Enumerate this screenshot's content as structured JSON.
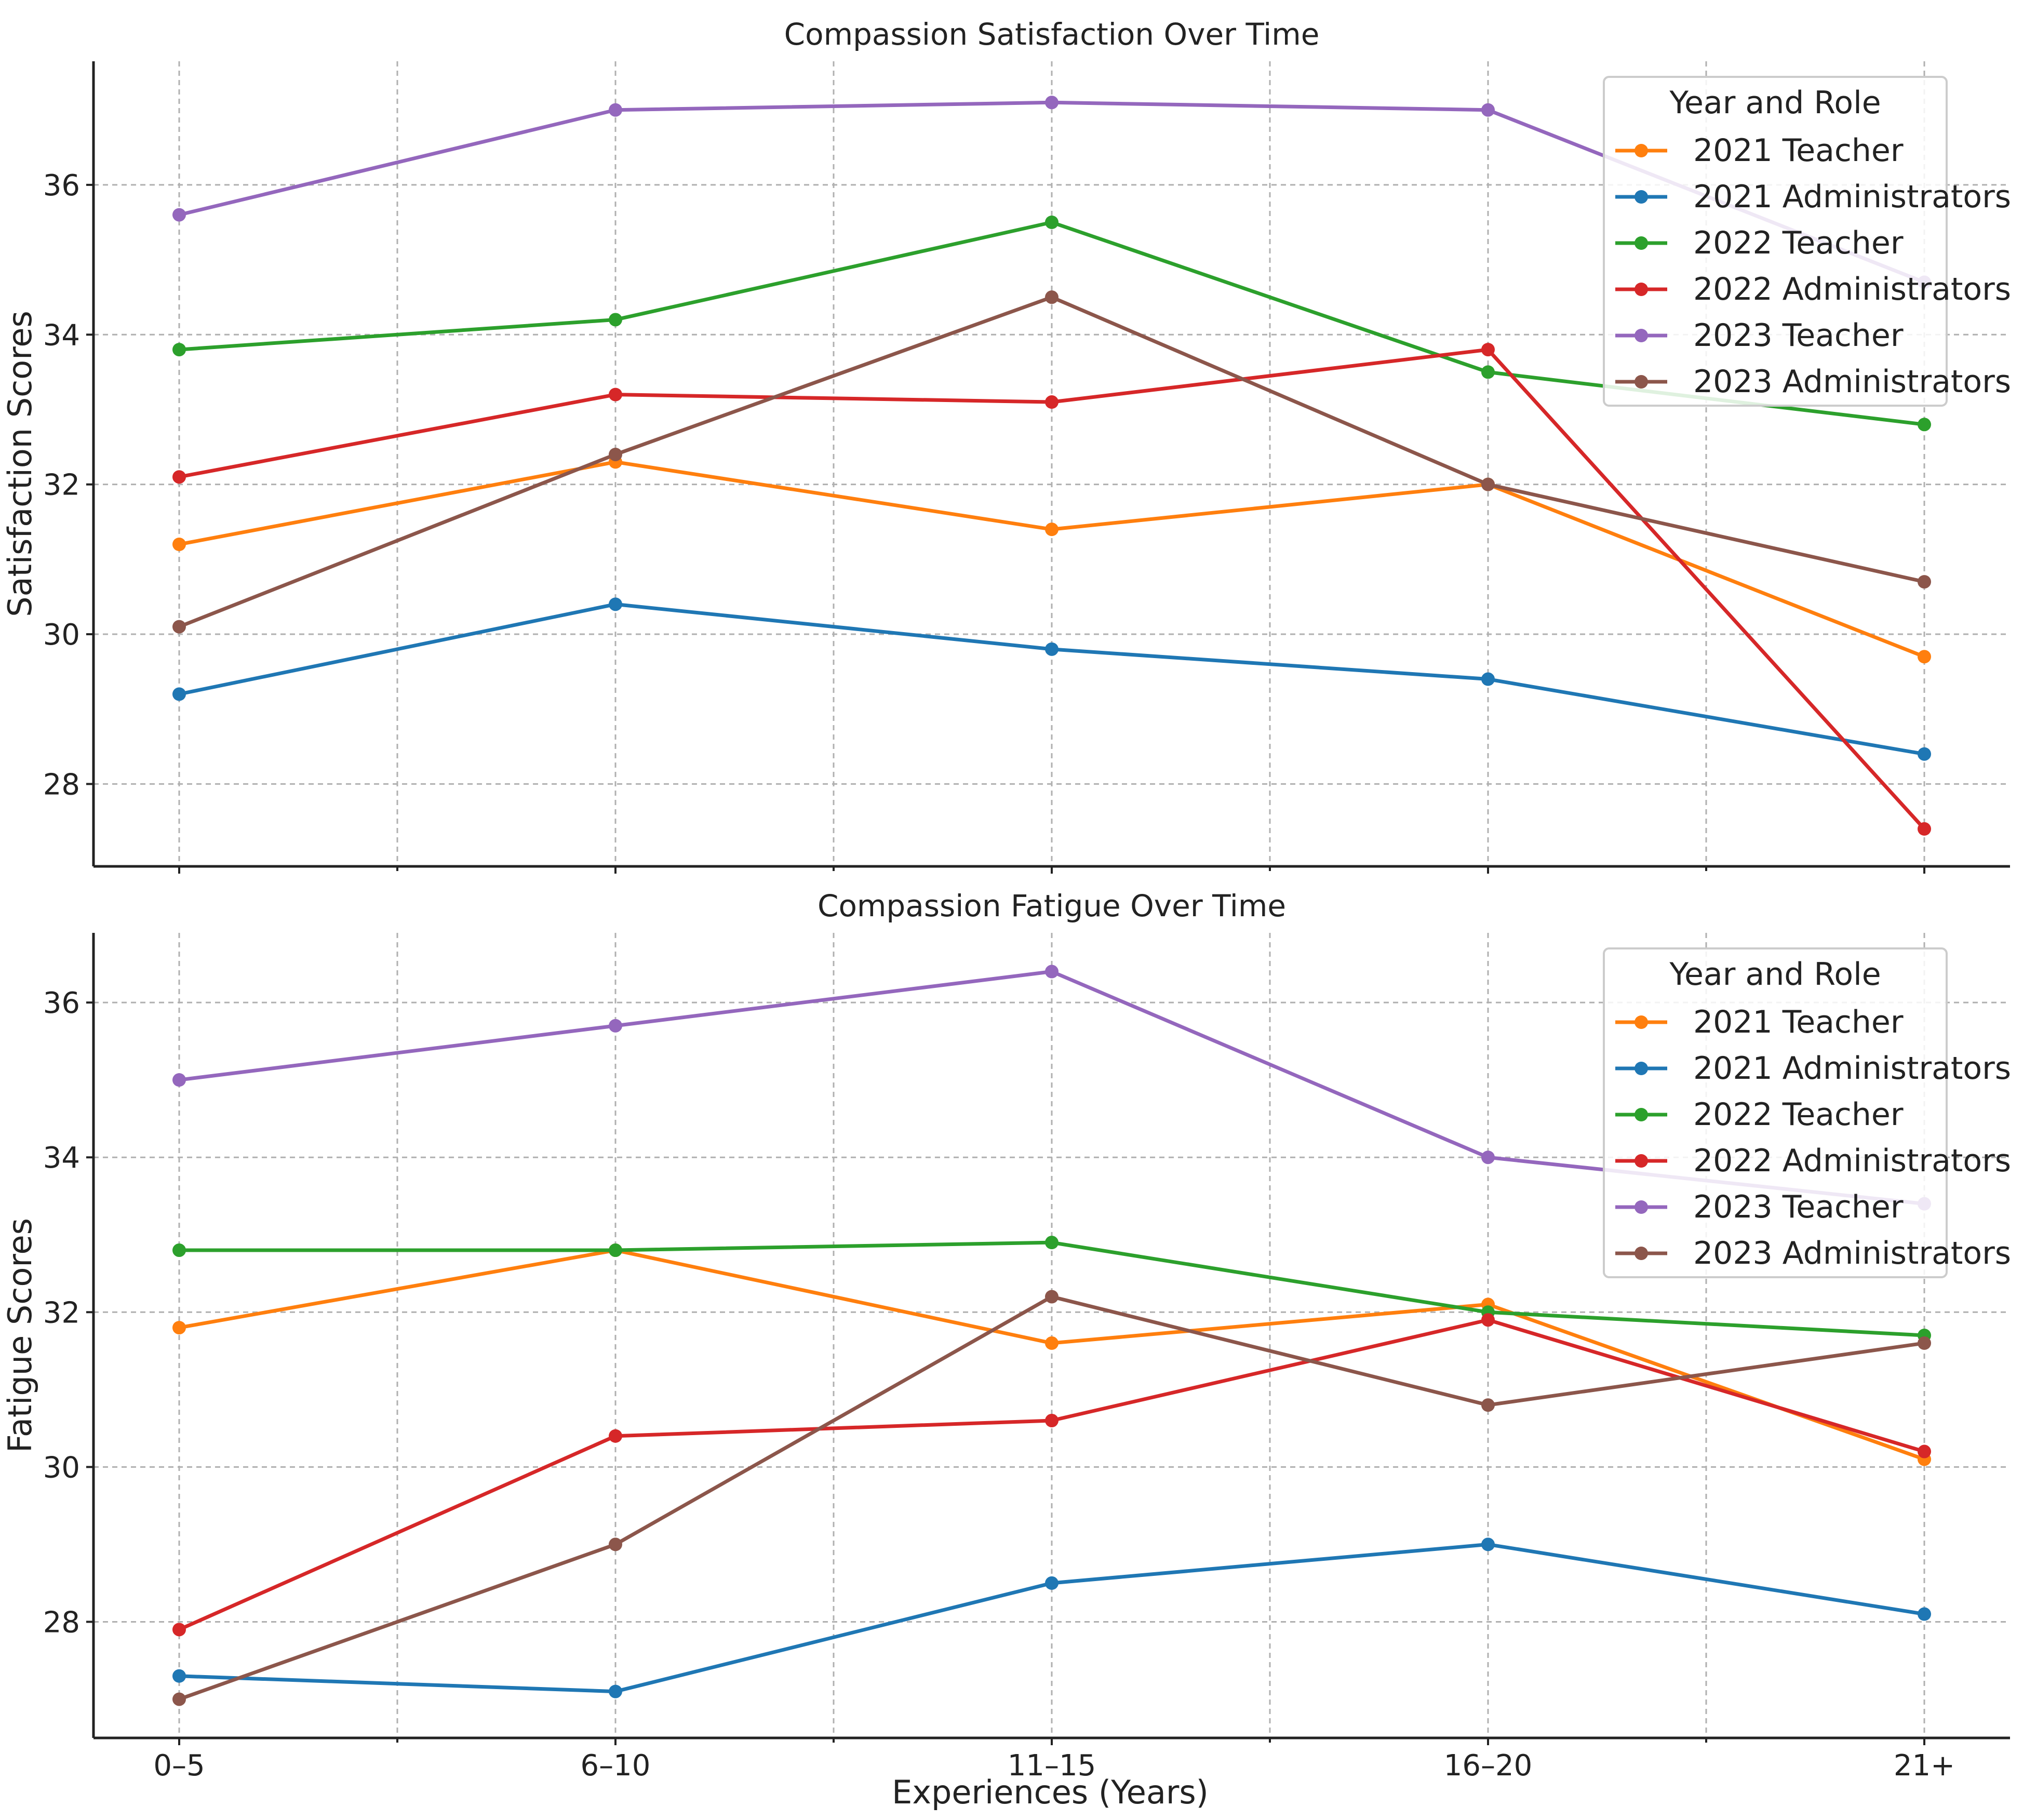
{
  "legend_title": "Year and Role",
  "series_names": [
    "2021 Teacher",
    "2021 Administrators",
    "2022 Teacher",
    "2022 Administrators",
    "2023 Teacher",
    "2023 Administrators"
  ],
  "series_colors": [
    "#ff7f0e",
    "#1f77b4",
    "#2ca02c",
    "#d62728",
    "#9467bd",
    "#8c564b"
  ],
  "x_axis_label": "Experiences (Years)",
  "chart_data": [
    {
      "type": "line",
      "title": "Compassion Satisfaction Over Time",
      "xlabel": "",
      "ylabel": "Satisfaction Scores",
      "categories": [
        "0–5",
        "6–10",
        "11–15",
        "16–20",
        "21+"
      ],
      "ylim": [
        26.9,
        37.65
      ],
      "yticks": [
        28,
        30,
        32,
        34,
        36
      ],
      "ytick_labels": [
        "28",
        "30",
        "32",
        "34",
        "36"
      ],
      "legend_position": "top-right",
      "grid": true,
      "series": [
        {
          "name": "2021 Teacher",
          "values": [
            31.2,
            32.3,
            31.4,
            32.0,
            29.7
          ]
        },
        {
          "name": "2021 Administrators",
          "values": [
            29.2,
            30.4,
            29.8,
            29.4,
            28.4
          ]
        },
        {
          "name": "2022 Teacher",
          "values": [
            33.8,
            34.2,
            35.5,
            33.5,
            32.8
          ]
        },
        {
          "name": "2022 Administrators",
          "values": [
            32.1,
            33.2,
            33.1,
            33.8,
            27.4
          ]
        },
        {
          "name": "2023 Teacher",
          "values": [
            35.6,
            37.0,
            37.1,
            37.0,
            34.7
          ]
        },
        {
          "name": "2023 Administrators",
          "values": [
            30.1,
            32.4,
            34.5,
            32.0,
            30.7
          ]
        }
      ]
    },
    {
      "type": "line",
      "title": "Compassion Fatigue Over Time",
      "xlabel": "Experiences (Years)",
      "ylabel": "Fatigue Scores",
      "categories": [
        "0–5",
        "6–10",
        "11–15",
        "16–20",
        "21+"
      ],
      "ylim": [
        26.5,
        36.9
      ],
      "yticks": [
        28,
        30,
        32,
        34,
        36
      ],
      "ytick_labels": [
        "28",
        "30",
        "32",
        "34",
        "36"
      ],
      "legend_position": "top-right",
      "grid": true,
      "series": [
        {
          "name": "2021 Teacher",
          "values": [
            31.8,
            32.8,
            31.6,
            32.1,
            30.1
          ]
        },
        {
          "name": "2021 Administrators",
          "values": [
            27.3,
            27.1,
            28.5,
            29.0,
            28.1
          ]
        },
        {
          "name": "2022 Teacher",
          "values": [
            32.8,
            32.8,
            32.9,
            32.0,
            31.7
          ]
        },
        {
          "name": "2022 Administrators",
          "values": [
            27.9,
            30.4,
            30.6,
            31.9,
            30.2
          ]
        },
        {
          "name": "2023 Teacher",
          "values": [
            35.0,
            35.7,
            36.4,
            34.0,
            33.4
          ]
        },
        {
          "name": "2023 Administrators",
          "values": [
            27.0,
            29.0,
            32.2,
            30.8,
            31.6
          ]
        }
      ]
    }
  ]
}
